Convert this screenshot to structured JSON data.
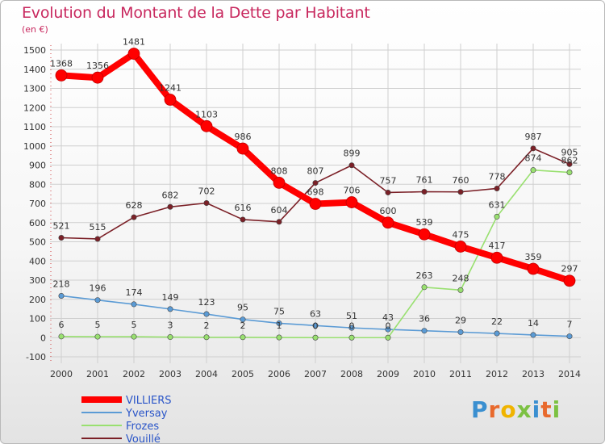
{
  "title": "Evolution du Montant de la Dette par Habitant",
  "unit_label": "(en €)",
  "logo_text": "Proxiti",
  "chart_data": {
    "type": "line",
    "title": "Evolution du Montant de la Dette par Habitant",
    "ylabel": "(en €)",
    "ylim": [
      -100,
      1500
    ],
    "yticks": [
      -100,
      0,
      100,
      200,
      300,
      400,
      500,
      600,
      700,
      800,
      900,
      1000,
      1100,
      1200,
      1300,
      1400,
      1500
    ],
    "x": [
      "2000",
      "2001",
      "2002",
      "2003",
      "2004",
      "2005",
      "2006",
      "2007",
      "2008",
      "2009",
      "2010",
      "2011",
      "2012",
      "2013",
      "2014"
    ],
    "grid": true,
    "legend": "bottom-left",
    "series": [
      {
        "name": "VILLIERS",
        "color": "#ff0000",
        "bold": true,
        "values": [
          1368,
          1356,
          1481,
          1241,
          1103,
          986,
          808,
          698,
          706,
          600,
          539,
          475,
          417,
          359,
          297
        ],
        "labels": [
          "1368",
          "1356",
          "1481",
          "1241",
          "1103",
          "986",
          "808",
          "698",
          "706",
          "600",
          "539",
          "475",
          "417",
          "359",
          "297"
        ]
      },
      {
        "name": "Yversay",
        "color": "#5b9bd5",
        "values": [
          218,
          196,
          174,
          149,
          123,
          95,
          75,
          63,
          51,
          43,
          36,
          29,
          22,
          14,
          7
        ],
        "labels": [
          "218",
          "196",
          "174",
          "149",
          "123",
          "95",
          "75",
          "63",
          "51",
          "43",
          "36",
          "29",
          "22",
          "14",
          "7"
        ]
      },
      {
        "name": "Frozes",
        "color": "#99e070",
        "values": [
          6,
          5,
          5,
          3,
          2,
          2,
          1,
          0,
          0,
          0,
          263,
          248,
          631,
          874,
          862
        ],
        "labels": [
          "6",
          "5",
          "5",
          "3",
          "2",
          "2",
          "1",
          "0",
          "0",
          "0",
          "263",
          "248",
          "631",
          "874",
          "862"
        ]
      },
      {
        "name": "Vouillé",
        "color": "#7b2027",
        "values": [
          521,
          515,
          628,
          682,
          702,
          616,
          604,
          807,
          899,
          757,
          761,
          760,
          778,
          987,
          905
        ],
        "labels": [
          "521",
          "515",
          "628",
          "682",
          "702",
          "616",
          "604",
          "807",
          "899",
          "757",
          "761",
          "760",
          "778",
          "987",
          "905"
        ]
      }
    ]
  }
}
